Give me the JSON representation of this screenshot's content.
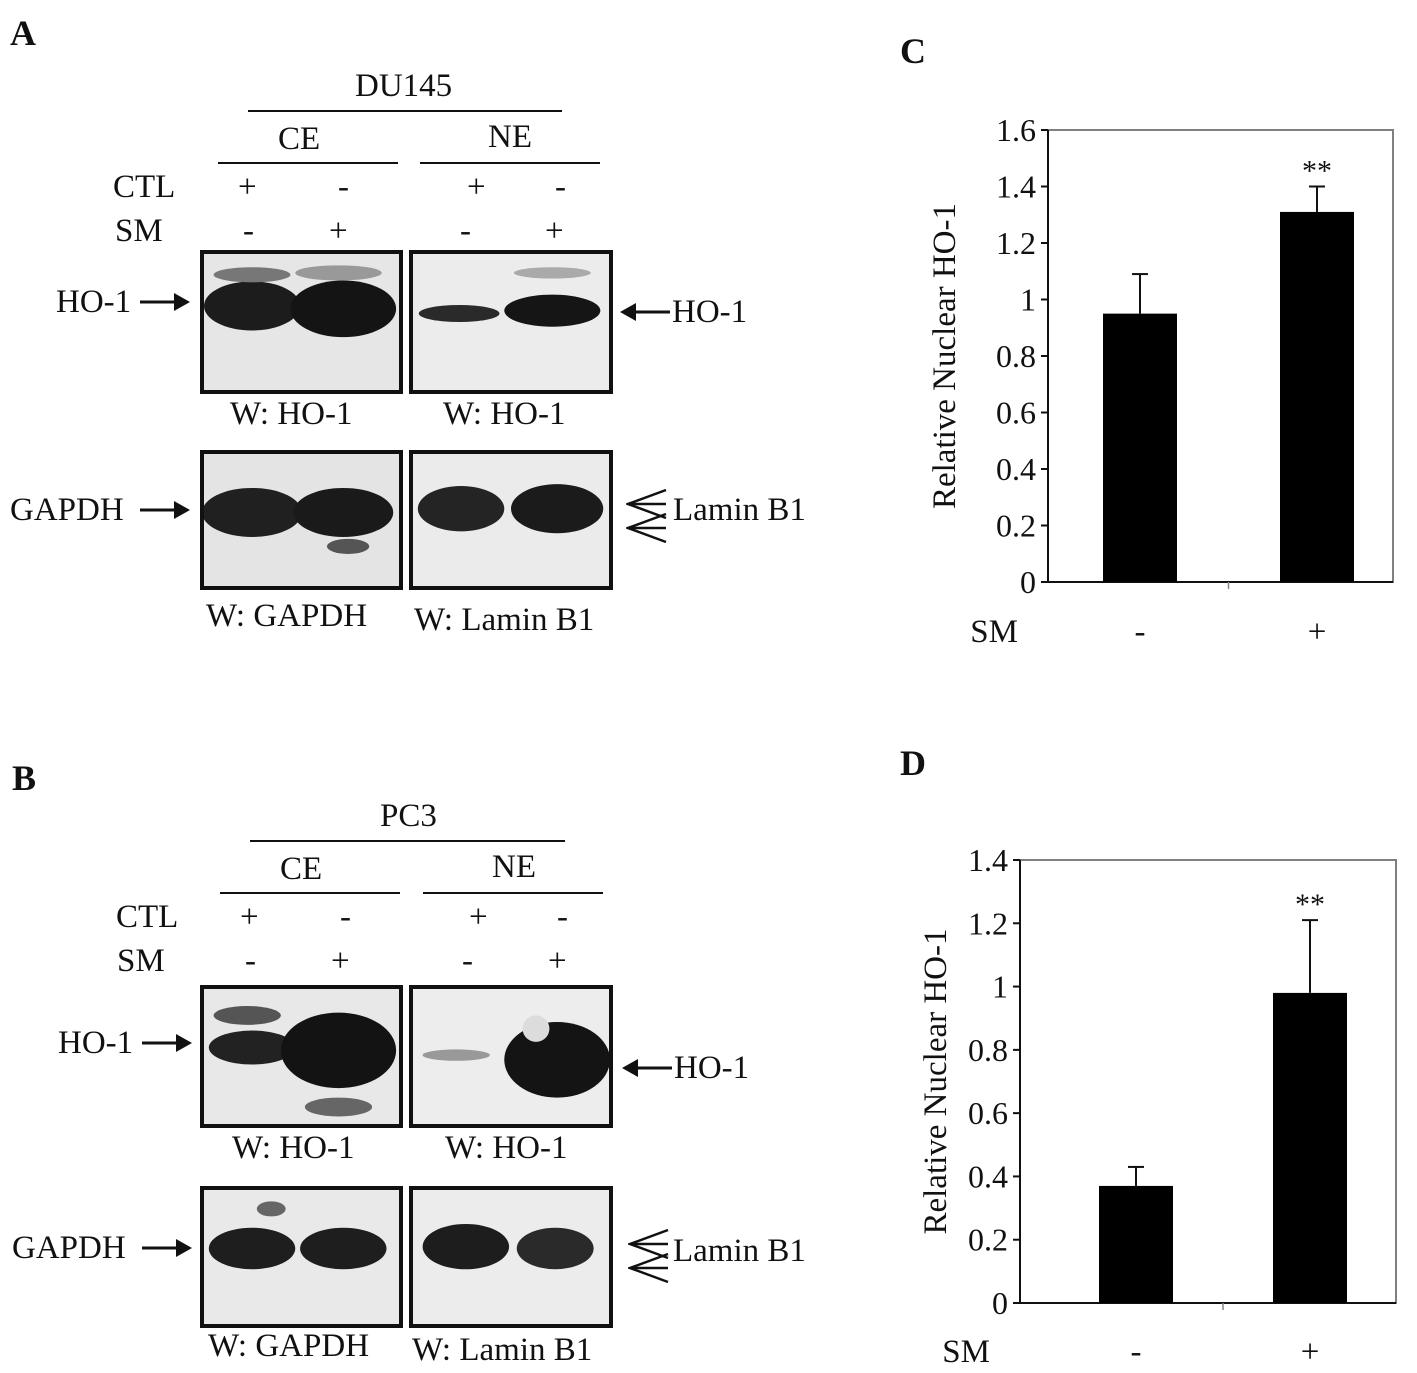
{
  "panels": {
    "A": {
      "letter": "A",
      "cell_line": "DU145",
      "ce": "CE",
      "ne": "NE",
      "ctl_label": "CTL",
      "sm_label": "SM",
      "ctl_signs": [
        "+",
        "-",
        "+",
        "-"
      ],
      "sm_signs": [
        "-",
        "+",
        "-",
        "+"
      ],
      "ho1_left": "HO-1",
      "ho1_right": "HO-1",
      "gapdh_left": "GAPDH",
      "lamin_right": "Lamin B1",
      "w_ho1_ce": "W: HO-1",
      "w_ho1_ne": "W: HO-1",
      "w_gapdh": "W: GAPDH",
      "w_lamin": "W: Lamin B1"
    },
    "B": {
      "letter": "B",
      "cell_line": "PC3",
      "ce": "CE",
      "ne": "NE",
      "ctl_label": "CTL",
      "sm_label": "SM",
      "ctl_signs": [
        "+",
        "-",
        "+",
        "-"
      ],
      "sm_signs": [
        "-",
        "+",
        "-",
        "+"
      ],
      "ho1_left": "HO-1",
      "ho1_right": "HO-1",
      "gapdh_left": "GAPDH",
      "lamin_right": "Lamin B1",
      "w_ho1_ce": "W: HO-1",
      "w_ho1_ne": "W: HO-1",
      "w_gapdh": "W: GAPDH",
      "w_lamin": "W: Lamin B1"
    },
    "C": {
      "letter": "C"
    },
    "D": {
      "letter": "D"
    }
  },
  "chart_data": [
    {
      "type": "bar",
      "panel": "C",
      "ylabel": "Relative Nuclear HO-1",
      "xlabel": "SM",
      "categories": [
        "-",
        "+"
      ],
      "values": [
        0.95,
        1.31
      ],
      "errors": [
        0.14,
        0.09
      ],
      "annotations": [
        "",
        "**"
      ],
      "ylim": [
        0,
        1.6
      ],
      "yticks": [
        "0",
        "0.2",
        "0.4",
        "0.6",
        "0.8",
        "1",
        "1.2",
        "1.4",
        "1.6"
      ],
      "grid": false,
      "bar_color": "#000000",
      "frame_color": "#808080"
    },
    {
      "type": "bar",
      "panel": "D",
      "ylabel": "Relative Nuclear HO-1",
      "xlabel": "SM",
      "categories": [
        "-",
        "+"
      ],
      "values": [
        0.37,
        0.98
      ],
      "errors": [
        0.06,
        0.23
      ],
      "annotations": [
        "",
        "**"
      ],
      "ylim": [
        0,
        1.4
      ],
      "yticks": [
        "0",
        "0.2",
        "0.4",
        "0.6",
        "0.8",
        "1",
        "1.2",
        "1.4"
      ],
      "grid": false,
      "bar_color": "#000000",
      "frame_color": "#808080"
    }
  ]
}
